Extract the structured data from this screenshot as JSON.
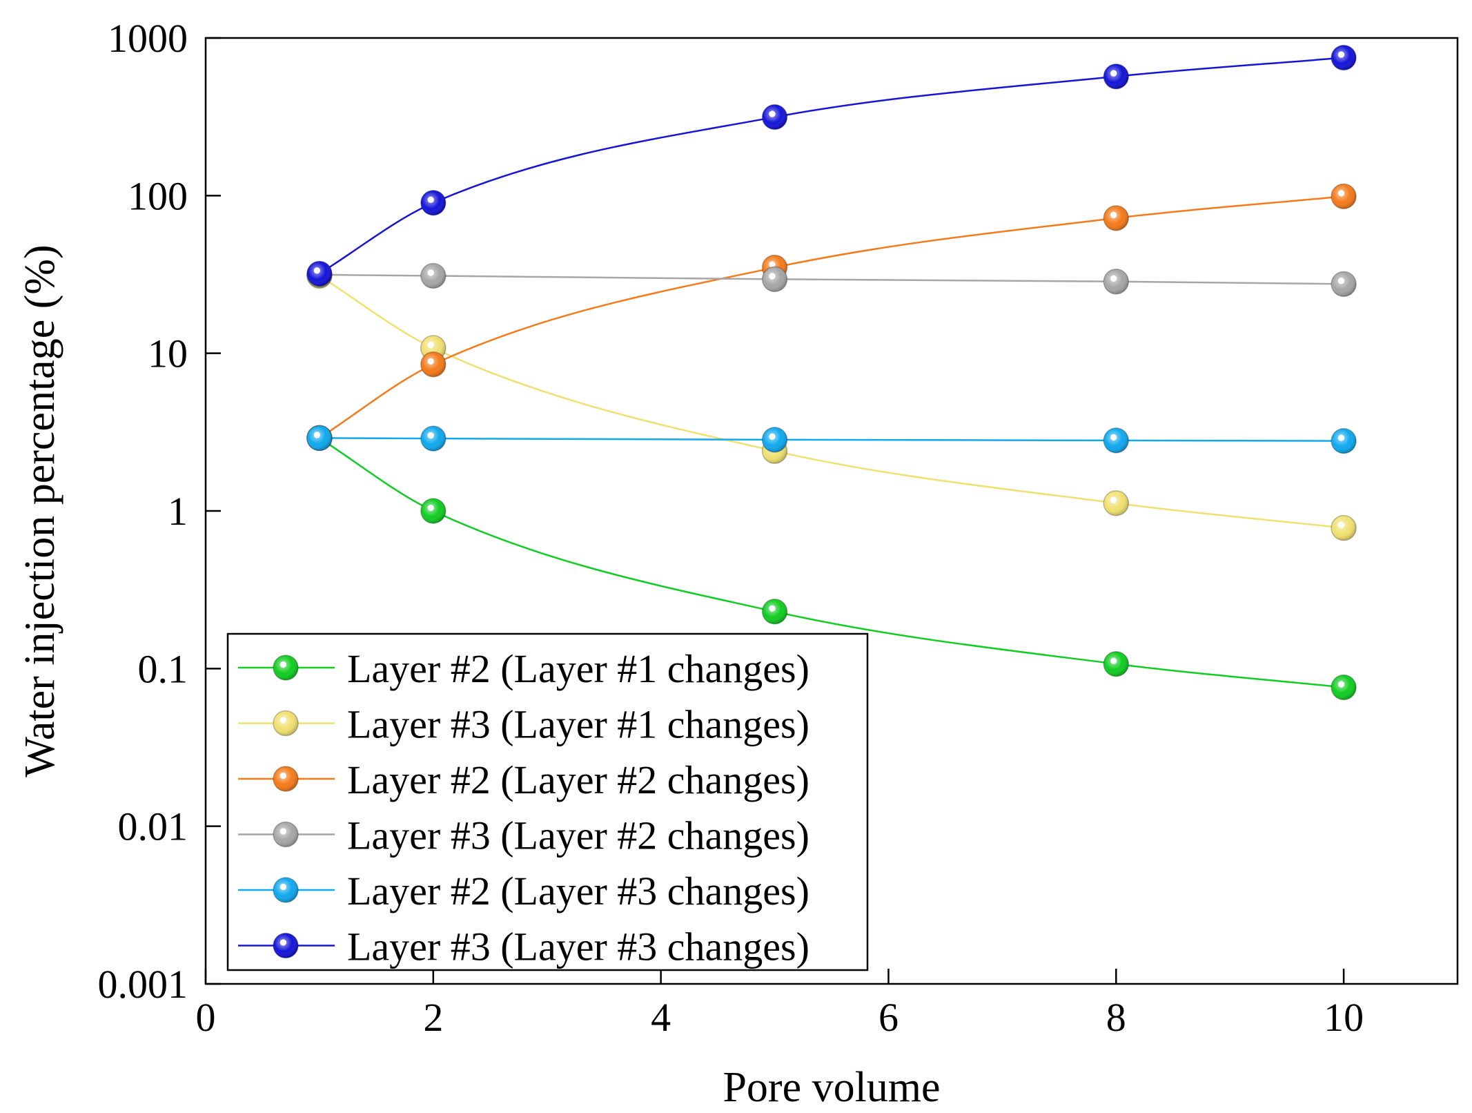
{
  "chart_data": {
    "type": "line",
    "title": "",
    "xlabel": "Pore volume",
    "ylabel": "Water injection percentage (%)",
    "x_scale": "linear",
    "y_scale": "log",
    "xlim": [
      0,
      11
    ],
    "ylim": [
      0.001,
      1000
    ],
    "x_ticks": [
      0,
      2,
      4,
      6,
      8,
      10
    ],
    "x_tick_labels": [
      "0",
      "2",
      "4",
      "6",
      "8",
      "10"
    ],
    "y_ticks": [
      0.001,
      0.01,
      0.1,
      1,
      10,
      100,
      1000
    ],
    "y_tick_labels": [
      "0.001",
      "0.01",
      "0.1",
      "1",
      "10",
      "100",
      "1000"
    ],
    "grid": false,
    "legend_position": "bottom-left",
    "x": [
      1,
      2,
      5,
      8,
      10
    ],
    "series": [
      {
        "name": "Layer #2 (Layer #1 changes)",
        "color": "#11cc22",
        "values": [
          2.9,
          1.0,
          0.23,
          0.107,
          0.076
        ]
      },
      {
        "name": "Layer #3 (Layer #1 changes)",
        "color": "#f0e070",
        "values": [
          31,
          10.8,
          2.4,
          1.12,
          0.78
        ]
      },
      {
        "name": "Layer #2 (Layer #2 changes)",
        "color": "#f47a1a",
        "values": [
          2.9,
          8.5,
          35,
          72,
          99
        ]
      },
      {
        "name": "Layer #3 (Layer #2 changes)",
        "color": "#a6a6a6",
        "values": [
          31.5,
          31,
          29.5,
          28.5,
          27.5
        ]
      },
      {
        "name": "Layer #2 (Layer #3 changes)",
        "color": "#10a8ee",
        "values": [
          2.9,
          2.88,
          2.83,
          2.8,
          2.78
        ]
      },
      {
        "name": "Layer #3 (Layer #3 changes)",
        "color": "#1515d8",
        "values": [
          32,
          90,
          315,
          570,
          750
        ]
      }
    ]
  }
}
